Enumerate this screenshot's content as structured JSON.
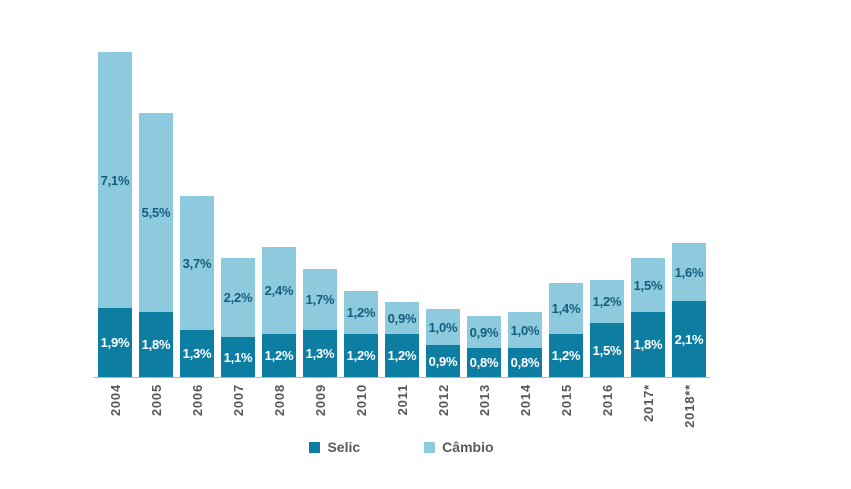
{
  "chart_data": {
    "type": "bar",
    "stacked": true,
    "title": "",
    "xlabel": "",
    "ylabel": "",
    "grid": false,
    "ylim": [
      0,
      9.5
    ],
    "legend_position": "bottom-center",
    "value_label_format": "comma-decimal percent",
    "categories": [
      "2004",
      "2005",
      "2006",
      "2007",
      "2008",
      "2009",
      "2010",
      "2011",
      "2012",
      "2013",
      "2014",
      "2015",
      "2016",
      "2017*",
      "2018**"
    ],
    "series": [
      {
        "name": "Selic",
        "color": "#0e7da2",
        "label_color": "#ffffff",
        "values": [
          1.9,
          1.8,
          1.3,
          1.1,
          1.2,
          1.3,
          1.2,
          1.2,
          0.9,
          0.8,
          0.8,
          1.2,
          1.5,
          1.8,
          2.1
        ],
        "labels": [
          "1,9%",
          "1,8%",
          "1,3%",
          "1,1%",
          "1,2%",
          "1,3%",
          "1,2%",
          "1,2%",
          "0,9%",
          "0,8%",
          "0,8%",
          "1,2%",
          "1,5%",
          "1,8%",
          "2,1%"
        ]
      },
      {
        "name": "Câmbio",
        "color": "#8ecadd",
        "label_color": "#135e7e",
        "values": [
          7.1,
          5.5,
          3.7,
          2.2,
          2.4,
          1.7,
          1.2,
          0.9,
          1.0,
          0.9,
          1.0,
          1.4,
          1.2,
          1.5,
          1.6
        ],
        "labels": [
          "7,1%",
          "5,5%",
          "3,7%",
          "2,2%",
          "2,4%",
          "1,7%",
          "1,2%",
          "0,9%",
          "1,0%",
          "0,9%",
          "1,0%",
          "1,4%",
          "1,2%",
          "1,5%",
          "1,6%"
        ]
      }
    ]
  },
  "legend": {
    "items": [
      {
        "label": "Selic",
        "color": "#0e7da2"
      },
      {
        "label": "Câmbio",
        "color": "#8ecadd"
      }
    ]
  },
  "axis": {
    "baseline_color": "#b7b7b7",
    "tick_label_color": "#595959"
  }
}
